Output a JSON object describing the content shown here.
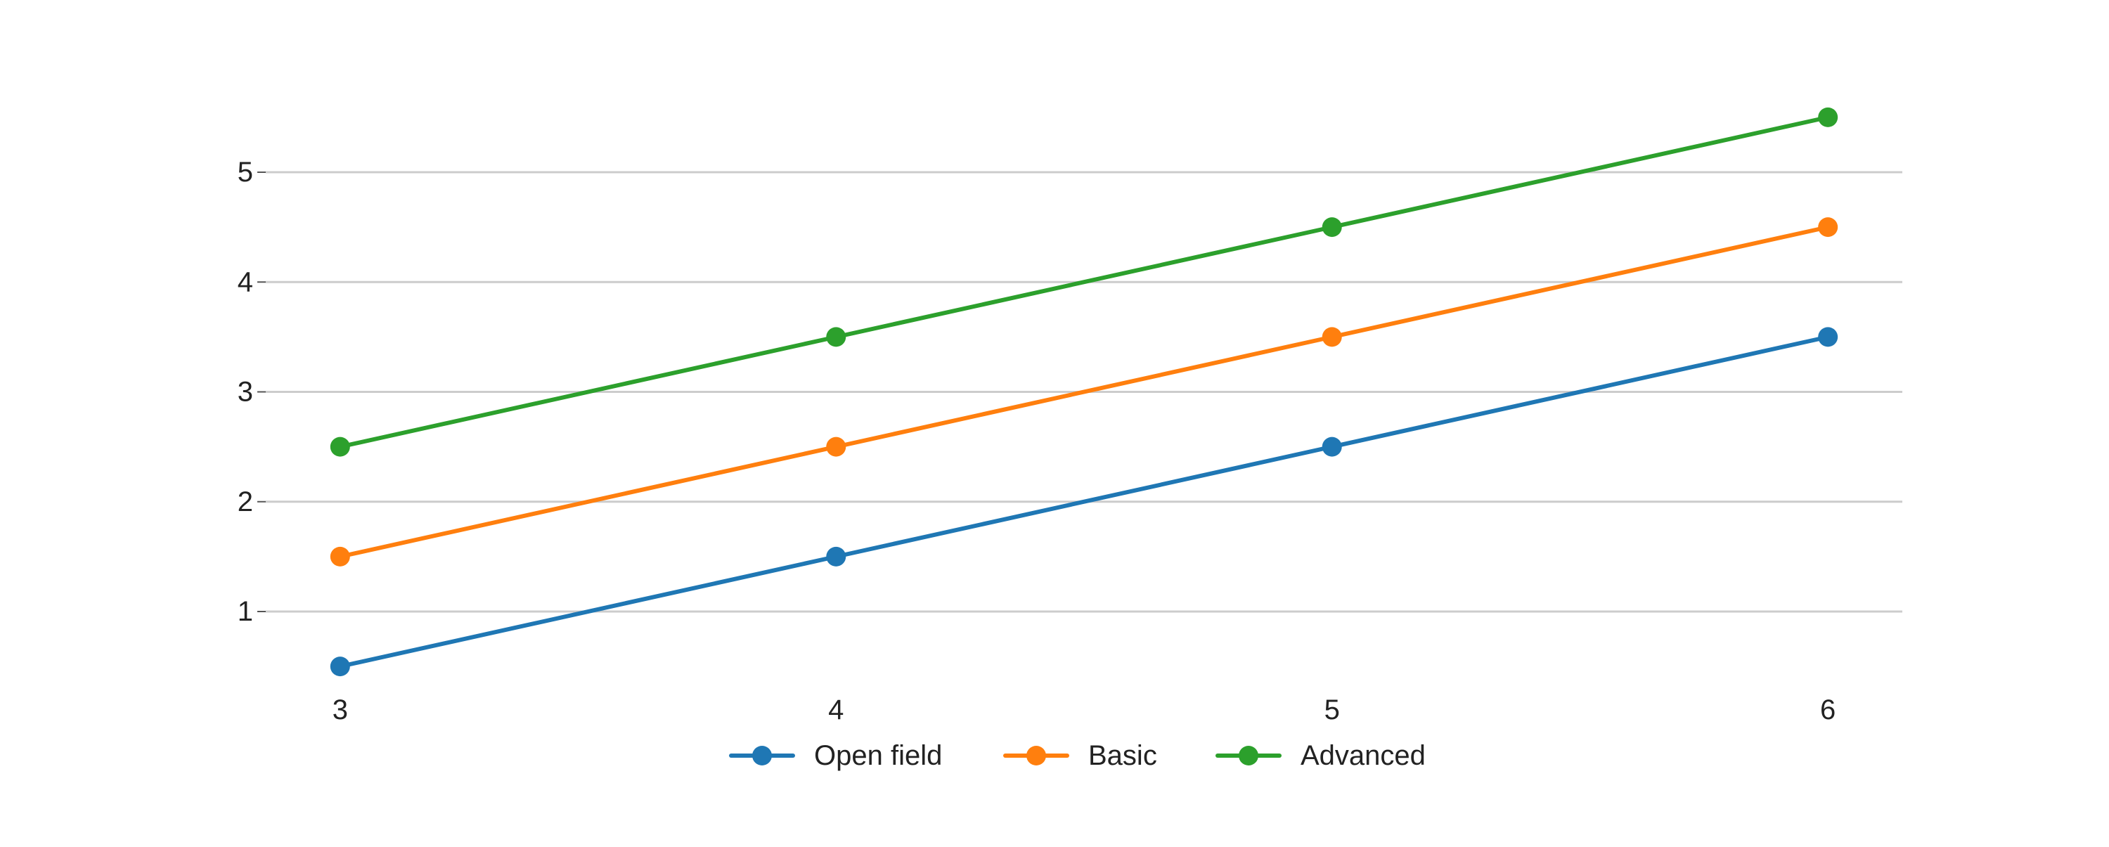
{
  "chart_data": {
    "type": "line",
    "title": "",
    "xlabel": "",
    "ylabel": "",
    "x": [
      3,
      4,
      5,
      6
    ],
    "xlim": [
      2.85,
      6.15
    ],
    "ylim": [
      0.2,
      5.8
    ],
    "yticks": [
      1,
      2,
      3,
      4,
      5
    ],
    "grid": "horizontal",
    "legend_position": "bottom-center",
    "series": [
      {
        "name": "Open field",
        "color": "#1f77b4",
        "values": [
          0.5,
          1.5,
          2.5,
          3.5
        ]
      },
      {
        "name": "Basic",
        "color": "#ff7f0e",
        "values": [
          1.5,
          2.5,
          3.5,
          4.5
        ]
      },
      {
        "name": "Advanced",
        "color": "#2ca02c",
        "values": [
          2.5,
          3.5,
          4.5,
          5.5
        ]
      }
    ]
  }
}
